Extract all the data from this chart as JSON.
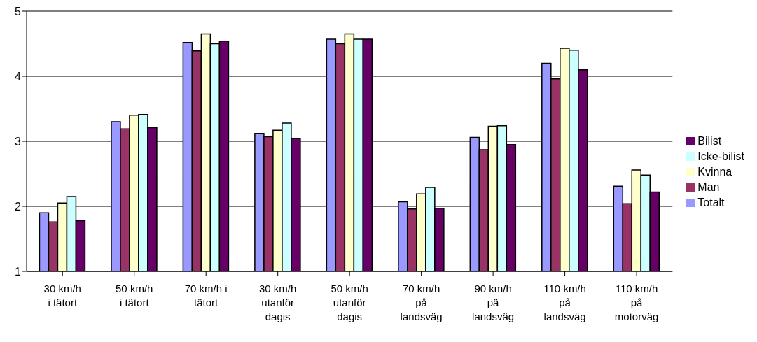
{
  "chart_data": {
    "type": "bar",
    "categories": [
      "30 km/h\ni tätort",
      "50 km/h\ni tätort",
      "70 km/h i\ntätort",
      "30 km/h\nutanför\ndagis",
      "50 km/h\nutanför\ndagis",
      "70 km/h\npå\nlandsväg",
      "90 km/h\npä\nlandsväg",
      "110 km/h\npå\nlandsväg",
      "110 km/h\npå\nmotorväg"
    ],
    "series": [
      {
        "name": "Totalt",
        "color": "#9999ff",
        "values": [
          1.9,
          3.3,
          4.52,
          3.12,
          4.57,
          2.07,
          3.06,
          4.2,
          2.31
        ]
      },
      {
        "name": "Man",
        "color": "#993366",
        "values": [
          1.76,
          3.19,
          4.39,
          3.07,
          4.5,
          1.96,
          2.87,
          3.96,
          2.04
        ]
      },
      {
        "name": "Kvinna",
        "color": "#ffffcc",
        "values": [
          2.05,
          3.4,
          4.65,
          3.17,
          4.65,
          2.19,
          3.23,
          4.43,
          2.56
        ]
      },
      {
        "name": "Icke-bilist",
        "color": "#ccffff",
        "values": [
          2.15,
          3.41,
          4.5,
          3.28,
          4.57,
          2.29,
          3.24,
          4.4,
          2.48
        ]
      },
      {
        "name": "Bilist",
        "color": "#660066",
        "values": [
          1.78,
          3.21,
          4.54,
          3.04,
          4.57,
          1.97,
          2.95,
          4.1,
          2.22
        ]
      }
    ],
    "ylim": [
      1,
      5
    ],
    "yticks": [
      1,
      2,
      3,
      4,
      5
    ],
    "grid": "y",
    "legend": "right"
  }
}
